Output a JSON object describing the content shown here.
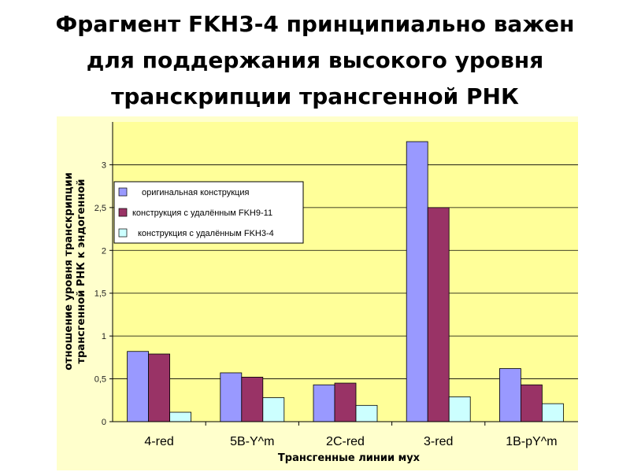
{
  "slide": {
    "title_lines": [
      "Фрагмент FKH3-4 принципиально важен",
      "для поддержания высокого уровня",
      "транскрипции трансгенной РНК"
    ]
  },
  "colors": {
    "plot_background": "#FFFF99",
    "outer_background": "#FFFFCC",
    "gridline": "#000000",
    "series": [
      "#9999FF",
      "#993366",
      "#CCFFFF"
    ]
  },
  "chart_data": {
    "type": "bar",
    "categories": [
      "4-red",
      "5B-Y^m",
      "2C-red",
      "3-red",
      "1B-pY^m"
    ],
    "series": [
      {
        "name": "оригинальная конструкция",
        "values": [
          0.82,
          0.57,
          0.43,
          3.27,
          0.62
        ]
      },
      {
        "name": "конструкция с удалённым FKH9-11",
        "values": [
          0.79,
          0.52,
          0.45,
          2.5,
          0.43
        ]
      },
      {
        "name": "конструкция с удалённым FKH3-4",
        "values": [
          0.11,
          0.28,
          0.19,
          0.29,
          0.21
        ]
      }
    ],
    "title": "",
    "xlabel": "Трансгенные линии мух",
    "ylabel_lines": [
      "отношение уровня транскрипции",
      "трансгенной РНК к эндогенной"
    ],
    "ylim": [
      0,
      3.5
    ],
    "yticks": [
      0,
      0.5,
      1,
      1.5,
      2,
      2.5,
      3
    ],
    "ytick_labels": [
      "0",
      "0,5",
      "1",
      "1,5",
      "2",
      "2,5",
      "3"
    ],
    "grid": true,
    "legend_position": "upper-left"
  }
}
